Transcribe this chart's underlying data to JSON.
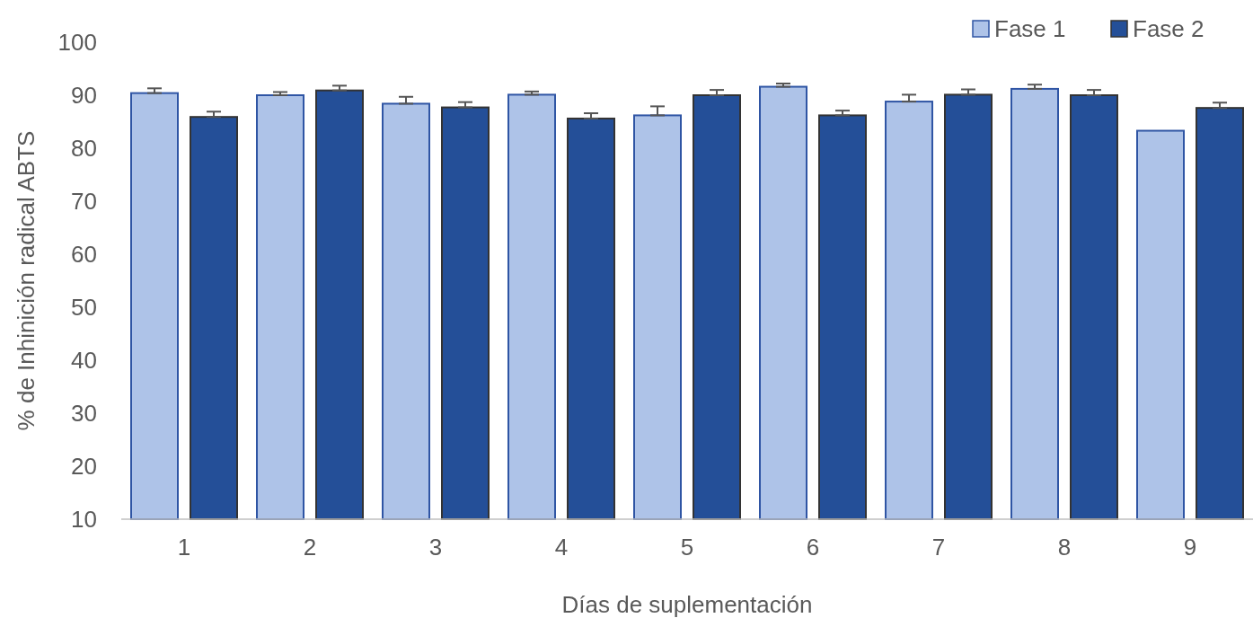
{
  "chart_data": {
    "type": "bar",
    "xlabel": "Días de suplementación",
    "ylabel": "% de Inhinición radical ABTS",
    "categories": [
      "1",
      "2",
      "3",
      "4",
      "5",
      "6",
      "7",
      "8",
      "9"
    ],
    "series": [
      {
        "name": "Fase 1",
        "color": "#aec3e8",
        "values": [
          90.4,
          90.0,
          88.4,
          90.1,
          86.2,
          91.6,
          88.8,
          91.2,
          83.3
        ],
        "errors": [
          [
            90.4,
            91.3
          ],
          [
            90.0,
            90.6
          ],
          [
            88.4,
            89.7
          ],
          [
            90.1,
            90.7
          ],
          [
            86.2,
            87.9
          ],
          [
            91.6,
            92.2
          ],
          [
            88.8,
            90.1
          ],
          [
            91.2,
            92.0
          ],
          null
        ]
      },
      {
        "name": "Fase 2",
        "color": "#244f98",
        "values": [
          85.9,
          90.9,
          87.7,
          85.6,
          90.0,
          86.2,
          90.1,
          90.0,
          87.6
        ],
        "errors": [
          [
            85.9,
            86.9
          ],
          [
            90.9,
            91.8
          ],
          [
            87.7,
            88.7
          ],
          [
            85.6,
            86.6
          ],
          [
            90.0,
            91.0
          ],
          [
            86.2,
            87.1
          ],
          [
            90.1,
            91.1
          ],
          [
            90.0,
            91.0
          ],
          [
            87.6,
            88.6
          ]
        ]
      }
    ],
    "ylim": [
      10,
      100
    ],
    "yticks": [
      10,
      20,
      30,
      40,
      50,
      60,
      70,
      80,
      90,
      100
    ],
    "legend": "top right"
  }
}
